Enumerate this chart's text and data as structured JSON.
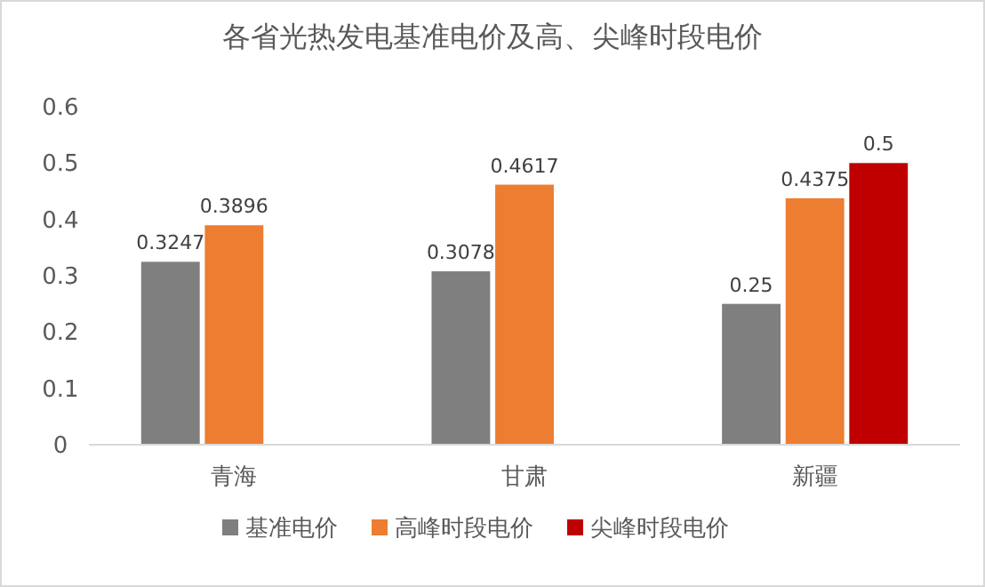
{
  "chart_data": {
    "type": "bar",
    "title": "各省光热发电基准电价及高、尖峰时段电价",
    "categories": [
      "青海",
      "甘肃",
      "新疆"
    ],
    "series": [
      {
        "name": "基准电价",
        "color": "#7f7f7f",
        "values": [
          0.3247,
          0.3078,
          0.25
        ]
      },
      {
        "name": "高峰时段电价",
        "color": "#ed7d31",
        "values": [
          0.3896,
          0.4617,
          0.4375
        ]
      },
      {
        "name": "尖峰时段电价",
        "color": "#c00000",
        "values": [
          null,
          null,
          0.5
        ]
      }
    ],
    "ylim": [
      0,
      0.6
    ],
    "yticks": [
      0,
      0.1,
      0.2,
      0.3,
      0.4,
      0.5,
      0.6
    ],
    "grid": false,
    "legend": "bottom",
    "data_labels": true
  }
}
